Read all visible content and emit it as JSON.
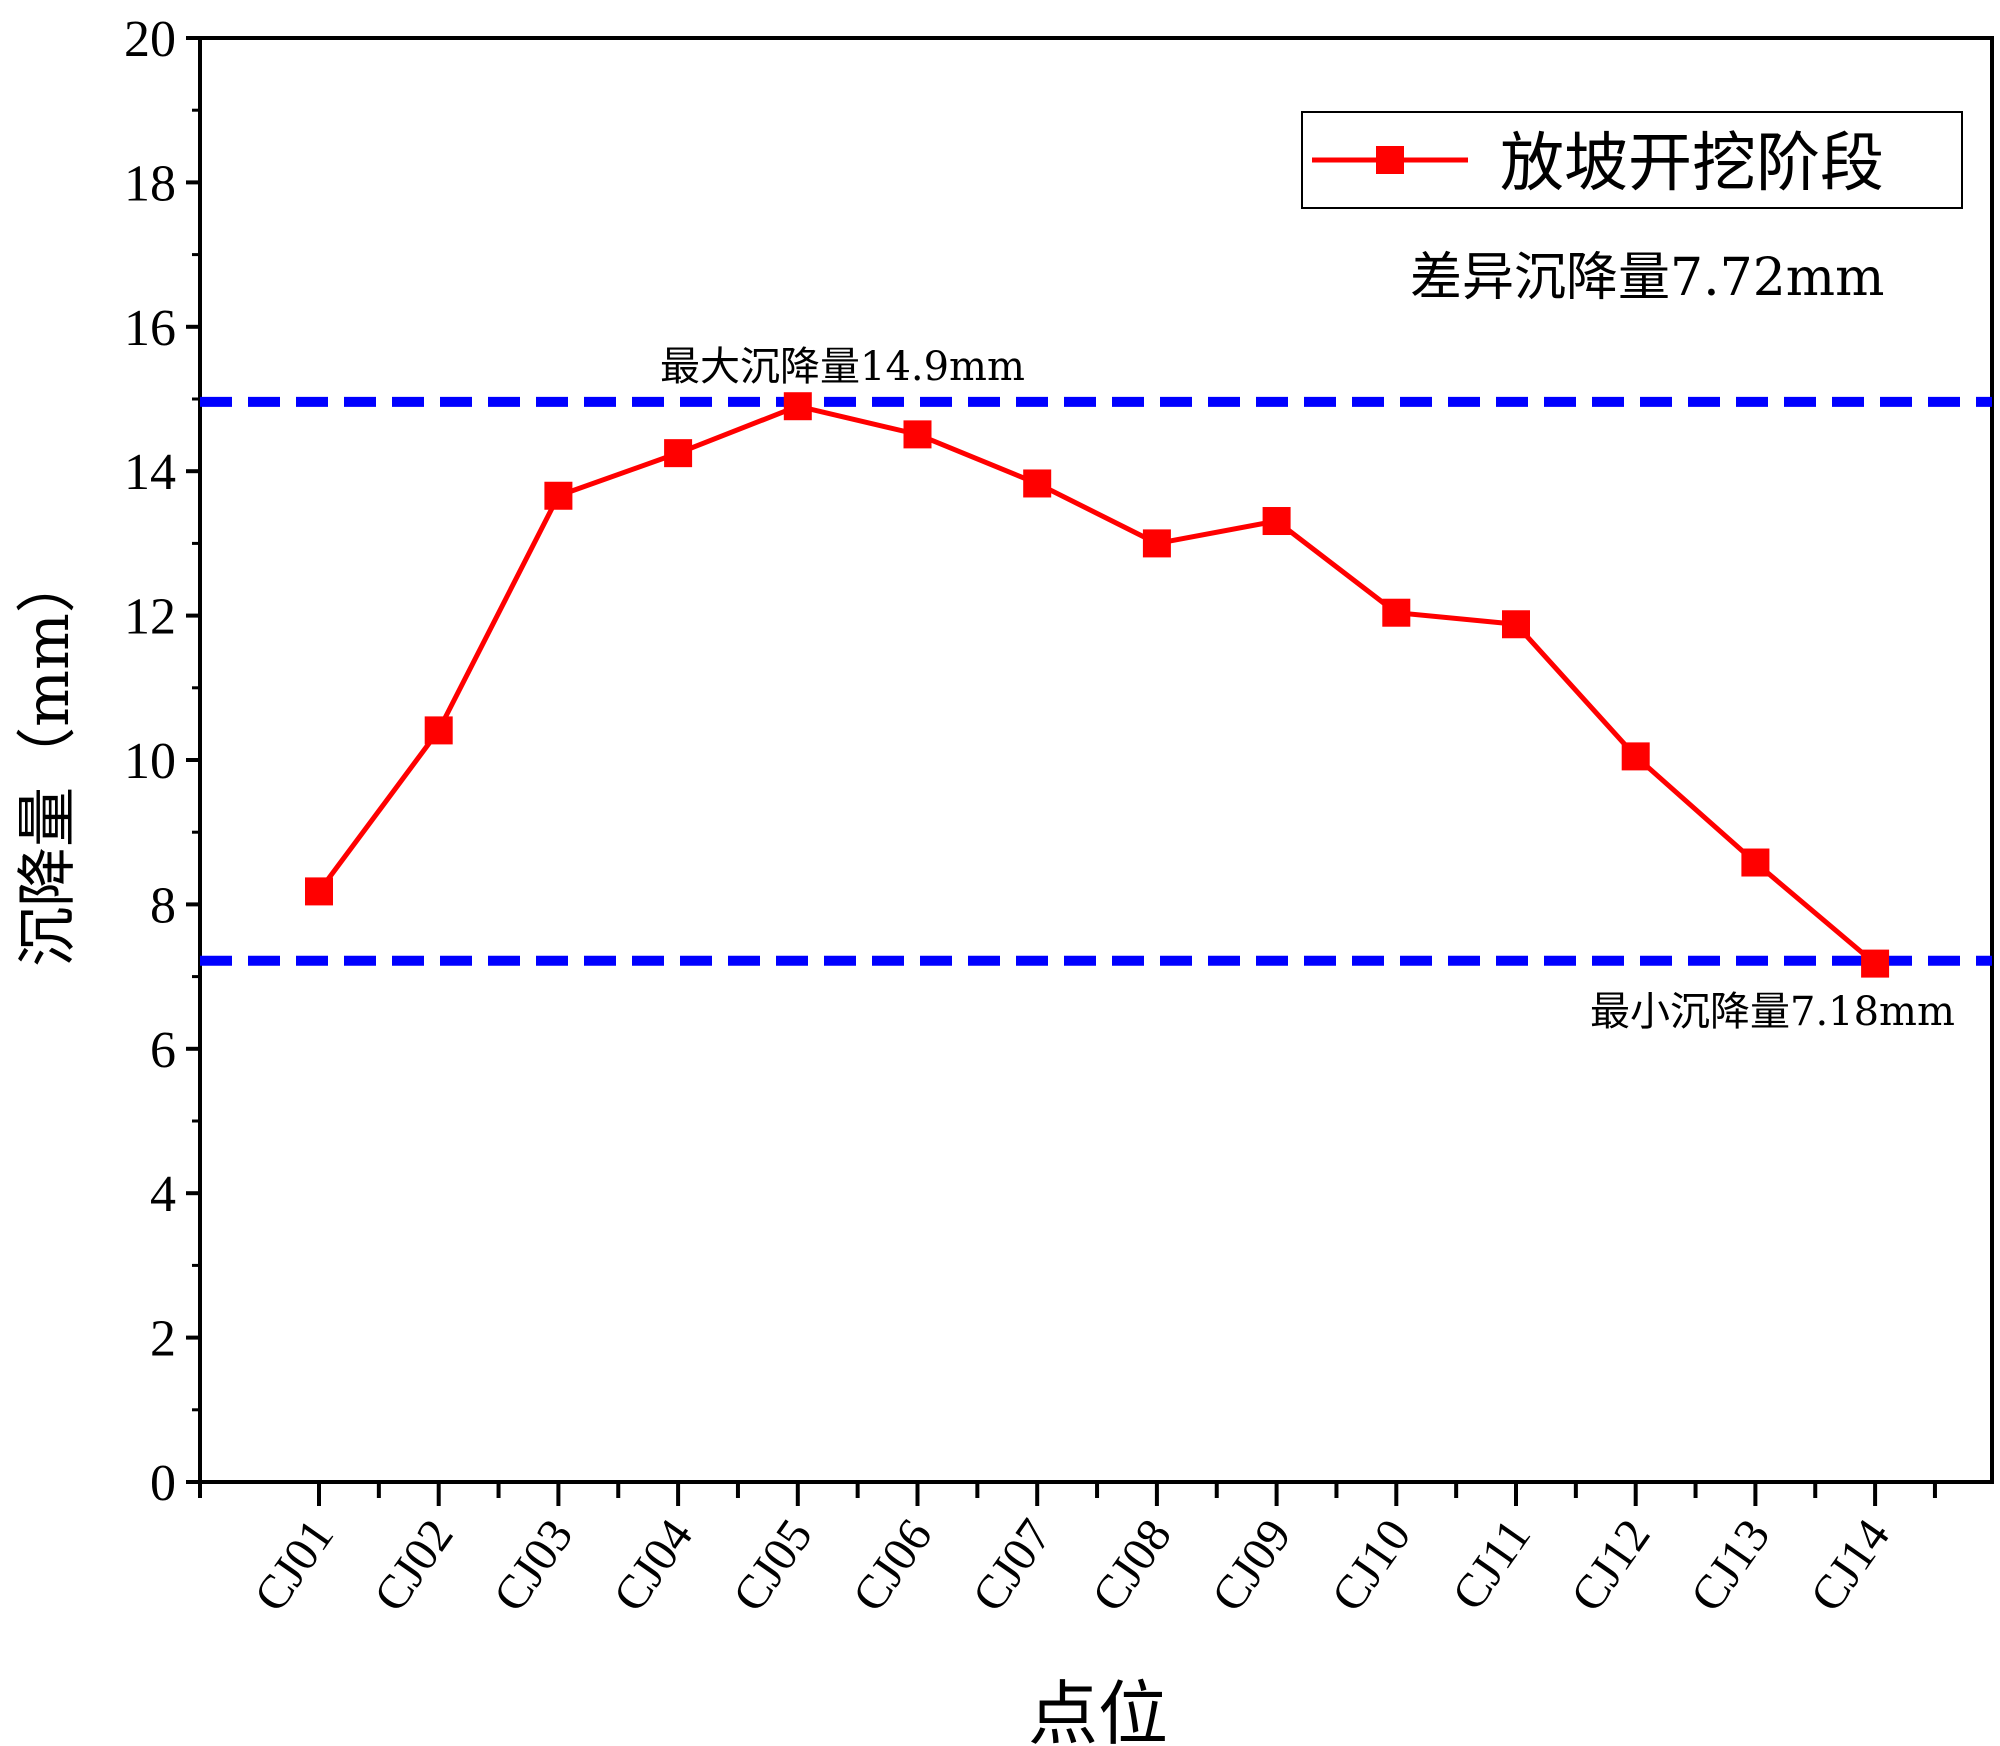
{
  "chart_data": {
    "type": "line",
    "xlabel": "点位",
    "ylabel": "沉降量（mm）",
    "ylim": [
      0,
      20
    ],
    "y_ticks": [
      "0",
      "2",
      "4",
      "6",
      "8",
      "10",
      "12",
      "14",
      "16",
      "18",
      "20"
    ],
    "categories": [
      "CJ01",
      "CJ02",
      "CJ03",
      "CJ04",
      "CJ05",
      "CJ06",
      "CJ07",
      "CJ08",
      "CJ09",
      "CJ10",
      "CJ11",
      "CJ12",
      "CJ13",
      "CJ14"
    ],
    "series": [
      {
        "name": "放坡开挖阶段",
        "color": "#ff0000",
        "marker": "square",
        "values": [
          8.18,
          10.41,
          13.66,
          14.25,
          14.9,
          14.51,
          13.83,
          13.0,
          13.31,
          12.04,
          11.88,
          10.05,
          8.58,
          7.18
        ]
      }
    ],
    "reference_lines": [
      {
        "value": 14.96,
        "color": "#0000ff",
        "style": "dashed"
      },
      {
        "value": 7.22,
        "color": "#0000ff",
        "style": "dashed"
      }
    ],
    "annotations": {
      "max_label": "最大沉降量14.9mm",
      "min_label": "最小沉降量7.18mm",
      "diff_label": "差异沉降量7.72mm"
    },
    "legend": {
      "position": "top-right"
    },
    "grid": false
  }
}
